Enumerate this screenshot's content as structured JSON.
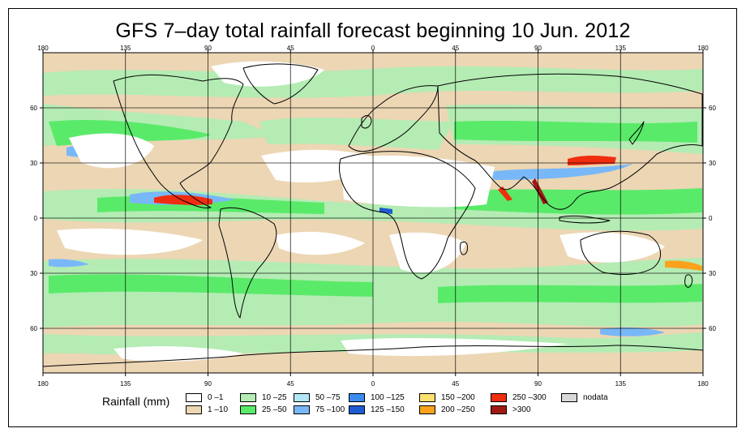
{
  "title": "GFS 7–day total rainfall forecast beginning 10 Jun. 2012",
  "lon_labels": [
    "180",
    "135",
    "90",
    "45",
    "0",
    "45",
    "90",
    "135",
    "180"
  ],
  "lat_labels": [
    "60",
    "30",
    "0",
    "30",
    "60"
  ],
  "legend": {
    "title": "Rainfall (mm)",
    "items": [
      {
        "label": "0 –1",
        "color": "#ffffff"
      },
      {
        "label": "1 –10",
        "color": "#ecd6b4"
      },
      {
        "label": "10 –25",
        "color": "#b4ecb4"
      },
      {
        "label": "25 –50",
        "color": "#5aea6a"
      },
      {
        "label": "50 –75",
        "color": "#b0e8f8"
      },
      {
        "label": "75 –100",
        "color": "#78b8f8"
      },
      {
        "label": "100 –125",
        "color": "#3c8cf0"
      },
      {
        "label": "125 –150",
        "color": "#1e5ad2"
      },
      {
        "label": "150 –200",
        "color": "#fce070"
      },
      {
        "label": "200 –250",
        "color": "#fca21c"
      },
      {
        "label": "250 –300",
        "color": "#f02d0f"
      },
      {
        "label": ">300",
        "color": "#a01a14"
      },
      {
        "label": "nodata",
        "color": "#d8d8d8"
      }
    ]
  }
}
